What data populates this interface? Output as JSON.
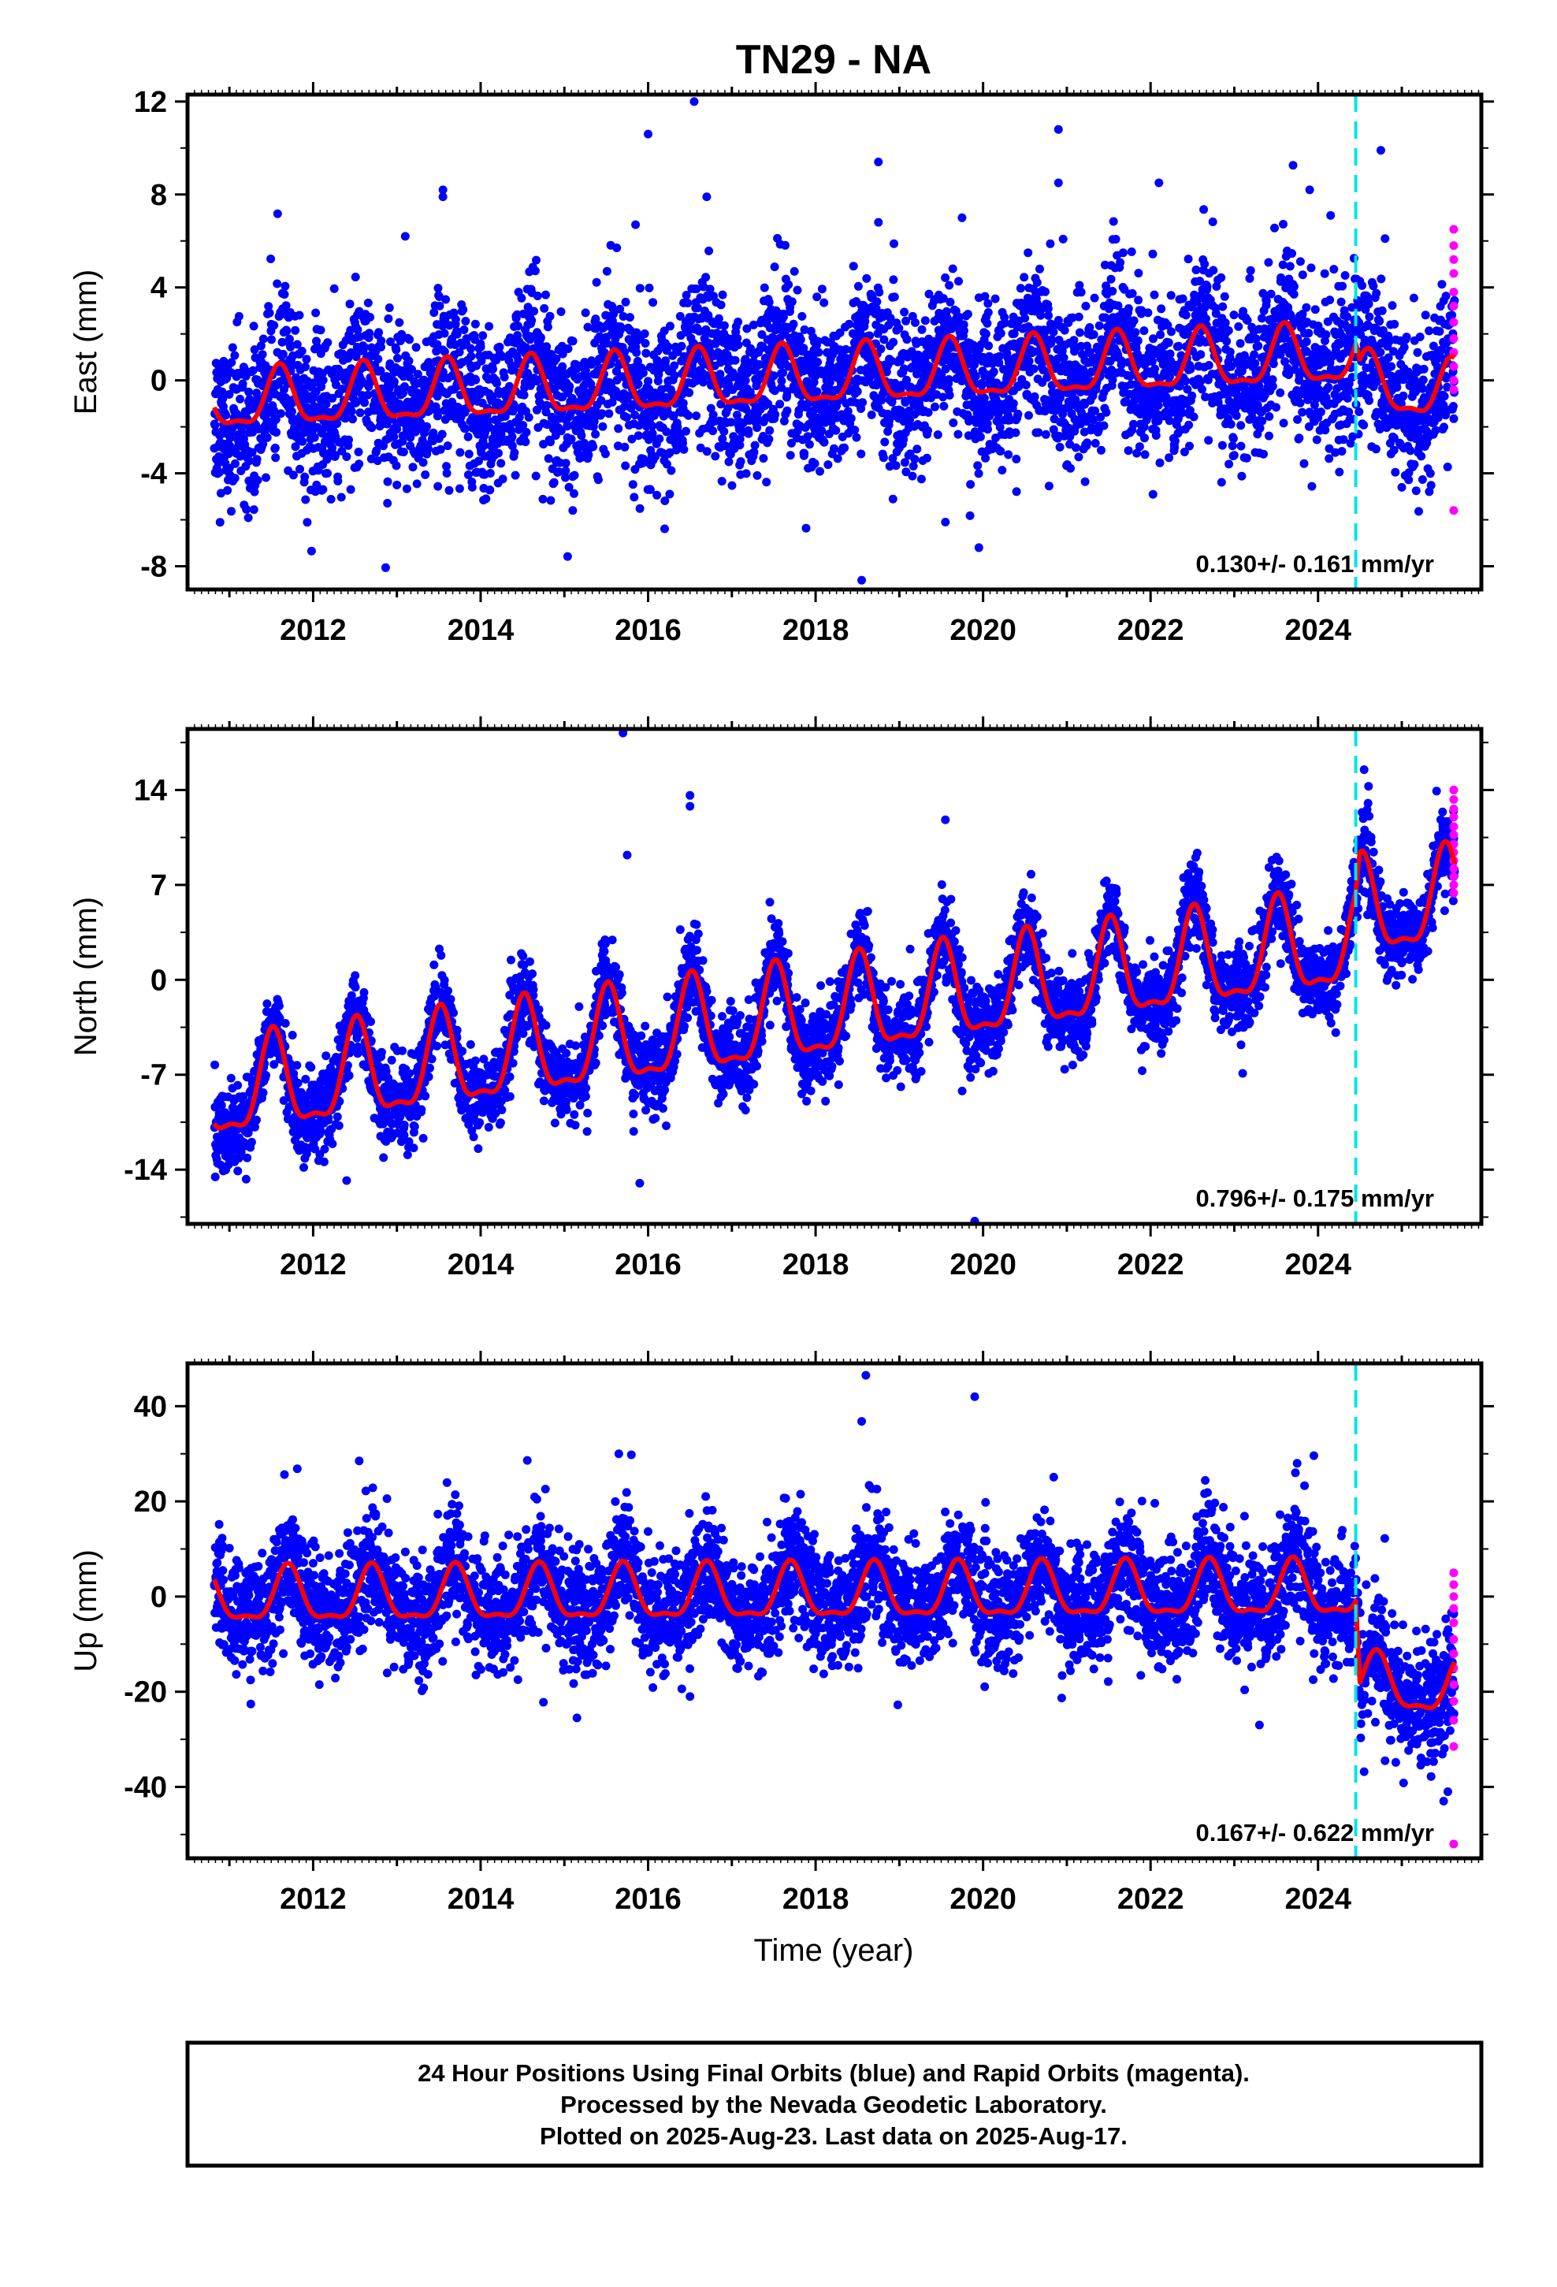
{
  "chart_data": {
    "type": "scatter",
    "title": "TN29 - NA",
    "xlabel": "Time (year)",
    "xlim": [
      2010.5,
      2025.95
    ],
    "xticks": [
      2012,
      2014,
      2016,
      2018,
      2020,
      2022,
      2024
    ],
    "equipment_change_epoch": 2024.45,
    "rapid_orbit_epoch": 2025.62,
    "colors": {
      "final_orbits": "#0000ff",
      "rapid_orbits": "#ff00ff",
      "model": "#ff0000",
      "event_line": "#00e5e5"
    },
    "start_epoch": 2010.82,
    "end_epoch": 2025.63,
    "panels": [
      {
        "name": "East",
        "ylabel": "East (mm)",
        "ylim": [
          -9,
          12.3
        ],
        "yticks": [
          -8,
          -4,
          0,
          4,
          8,
          12
        ],
        "rate": "0.130+/- 0.161 mm/yr",
        "model": {
          "trend": [
            [
              2010.8,
              -1.0
            ],
            [
              2024.45,
              1.0
            ],
            [
              2024.5,
              -0.2
            ],
            [
              2025.63,
              -0.6
            ]
          ],
          "amplitude": 1.2,
          "peak_phase": 0.6,
          "noise": 1.7
        },
        "rapid_values": [
          6.5,
          5.8,
          5.2,
          4.6,
          3.8,
          3.2,
          2.5,
          1.8,
          1.2,
          0.6,
          0.0,
          -0.4,
          -5.6
        ],
        "outliers": [
          [
            2016.55,
            12.0
          ],
          [
            2016.0,
            10.6
          ],
          [
            2020.9,
            10.8
          ],
          [
            2024.75,
            9.9
          ],
          [
            2018.75,
            9.4
          ],
          [
            2013.55,
            8.2
          ],
          [
            2013.55,
            7.9
          ],
          [
            2023.9,
            8.2
          ],
          [
            2022.1,
            8.5
          ],
          [
            2020.9,
            8.5
          ],
          [
            2016.7,
            7.9
          ],
          [
            2018.75,
            6.8
          ],
          [
            2015.85,
            6.7
          ],
          [
            2013.1,
            6.2
          ],
          [
            2024.8,
            6.1
          ],
          [
            2015.1,
            -5.6
          ],
          [
            2019.55,
            -6.1
          ],
          [
            2019.95,
            -7.2
          ],
          [
            2018.55,
            -8.6
          ],
          [
            2013.0,
            -4.5
          ],
          [
            2011.3,
            -4.8
          ],
          [
            2013.9,
            -4.6
          ],
          [
            2024.15,
            7.1
          ]
        ]
      },
      {
        "name": "North",
        "ylabel": "North (mm)",
        "ylim": [
          -18,
          18.5
        ],
        "yticks": [
          -14,
          -7,
          0,
          7,
          14
        ],
        "rate": "0.796+/- 0.175 mm/yr",
        "model": {
          "trend": [
            [
              2010.8,
              -8.6
            ],
            [
              2024.45,
              2.6
            ],
            [
              2024.5,
              4.9
            ],
            [
              2025.63,
              5.7
            ]
          ],
          "amplitude": 3.4,
          "peak_phase": 0.52,
          "noise": 1.5
        },
        "rapid_values": [
          14.0,
          13.3,
          12.6,
          12.0,
          11.3,
          10.7,
          10.0,
          9.4,
          8.8,
          8.2,
          7.6,
          7.0,
          6.4
        ],
        "outliers": [
          [
            2015.7,
            18.2
          ],
          [
            2016.5,
            13.6
          ],
          [
            2016.5,
            12.8
          ],
          [
            2024.55,
            15.5
          ],
          [
            2019.55,
            11.8
          ],
          [
            2015.75,
            9.2
          ],
          [
            2012.4,
            -14.8
          ],
          [
            2011.2,
            -14.7
          ],
          [
            2011.1,
            -14.1
          ],
          [
            2015.9,
            -15.0
          ],
          [
            2019.9,
            -17.8
          ],
          [
            2013.2,
            -12.4
          ],
          [
            2013.05,
            -11.4
          ],
          [
            2019.75,
            -8.2
          ],
          [
            2019.85,
            -7.2
          ],
          [
            2023.1,
            -6.9
          ],
          [
            2021.9,
            -6.7
          ],
          [
            2018.35,
            -4.2
          ],
          [
            2012.8,
            -9.5
          ]
        ]
      },
      {
        "name": "Up",
        "ylabel": "Up (mm)",
        "ylim": [
          -55,
          49
        ],
        "yticks": [
          -40,
          -20,
          0,
          20,
          40
        ],
        "rate": "0.167+/- 0.622 mm/yr",
        "model": {
          "trend": [
            [
              2010.8,
              -0.5
            ],
            [
              2024.45,
              1.0
            ],
            [
              2024.5,
              -18.2
            ],
            [
              2025.63,
              -20.0
            ]
          ],
          "amplitude": 5.5,
          "peak_phase": 0.7,
          "noise": 6.0
        },
        "rapid_values": [
          5.0,
          2.5,
          0.0,
          -2.5,
          -5.5,
          -9.0,
          -12.0,
          -15.0,
          -18.5,
          -22.0,
          -26.0,
          -31.5,
          -52.0
        ],
        "outliers": [
          [
            2018.6,
            46.5
          ],
          [
            2019.9,
            42.0
          ],
          [
            2018.55,
            36.8
          ],
          [
            2015.65,
            30.0
          ],
          [
            2015.8,
            29.8
          ],
          [
            2023.95,
            29.6
          ],
          [
            2012.55,
            28.5
          ],
          [
            2023.75,
            28.0
          ],
          [
            2015.15,
            -25.5
          ],
          [
            2014.75,
            -22.2
          ],
          [
            2013.3,
            -19.8
          ],
          [
            2023.3,
            -27.0
          ],
          [
            2024.8,
            -34.5
          ],
          [
            2025.5,
            -43.0
          ],
          [
            2025.55,
            -41.0
          ],
          [
            2016.5,
            -21.0
          ],
          [
            2024.55,
            -36.8
          ]
        ]
      }
    ],
    "caption": [
      "24 Hour Positions Using Final Orbits (blue) and Rapid Orbits (magenta).",
      "Processed by the Nevada Geodetic Laboratory.",
      "Plotted on 2025-Aug-23. Last data on 2025-Aug-17."
    ]
  }
}
